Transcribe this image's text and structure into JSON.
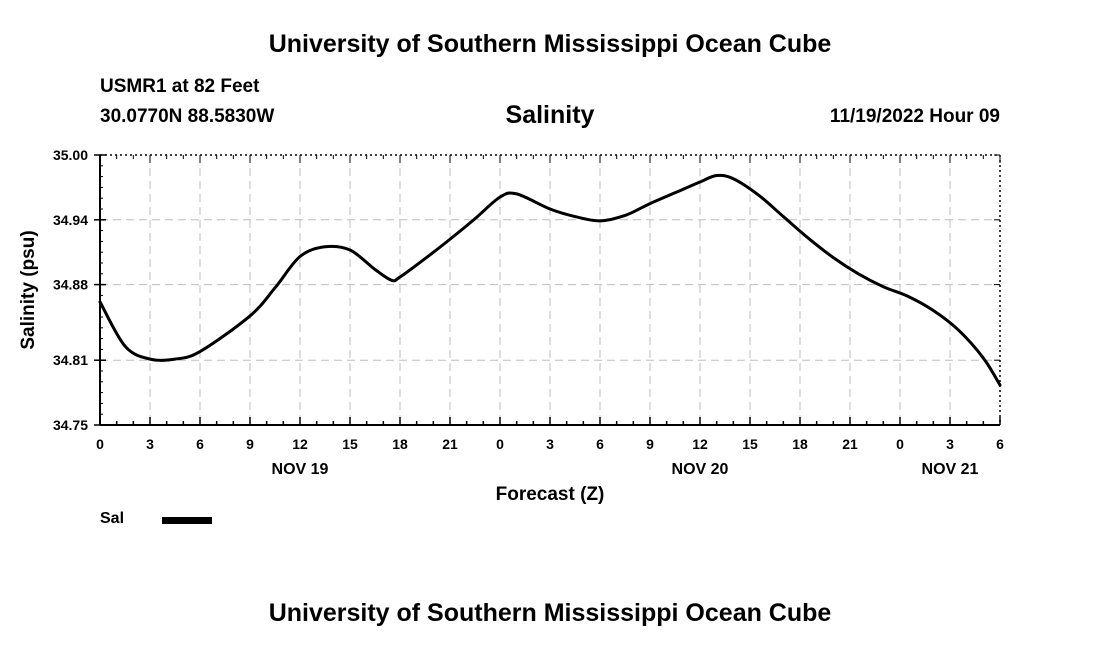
{
  "header": {
    "title": "University of Southern Mississippi Ocean Cube",
    "station": "USMR1 at 82 Feet",
    "coords": "30.0770N  88.5830W",
    "datetime": "11/19/2022 Hour 09"
  },
  "footer": {
    "title": "University of Southern Mississippi Ocean Cube"
  },
  "legend": {
    "label": "Sal",
    "color": "#000000"
  },
  "chart_data": {
    "type": "line",
    "title": "Salinity",
    "xlabel": "Forecast (Z)",
    "ylabel": "Salinity (psu)",
    "xlim": [
      0,
      54
    ],
    "ylim": [
      34.75,
      35.0
    ],
    "grid": true,
    "y_ticks": [
      34.75,
      34.81,
      34.88,
      34.94,
      35.0
    ],
    "y_tick_labels": [
      "34.75",
      "34.81",
      "34.88",
      "34.94",
      "35.00"
    ],
    "x_ticks": [
      0,
      3,
      6,
      9,
      12,
      15,
      18,
      21,
      24,
      27,
      30,
      33,
      36,
      39,
      42,
      45,
      48,
      51,
      54
    ],
    "x_tick_labels": [
      "0",
      "3",
      "6",
      "9",
      "12",
      "15",
      "18",
      "21",
      "0",
      "3",
      "6",
      "9",
      "12",
      "15",
      "18",
      "21",
      "0",
      "3",
      "6"
    ],
    "date_labels": [
      {
        "x": 12,
        "label": "NOV 19"
      },
      {
        "x": 36,
        "label": "NOV 20"
      },
      {
        "x": 51,
        "label": "NOV 21"
      }
    ],
    "series": [
      {
        "name": "Sal",
        "color": "#000000",
        "x": [
          0,
          1.5,
          3,
          4.5,
          6,
          9,
          10.5,
          12,
          13.5,
          15,
          16.5,
          17.5,
          18,
          19.5,
          21,
          22.5,
          24,
          25,
          27,
          28.5,
          30,
          31.5,
          33,
          34.5,
          36,
          37,
          38,
          39.5,
          41,
          42.5,
          44,
          45.5,
          47,
          48.5,
          50,
          51.5,
          53,
          54
        ],
        "values": [
          34.864,
          34.823,
          34.811,
          34.811,
          34.818,
          34.851,
          34.877,
          34.906,
          34.915,
          34.912,
          34.894,
          34.884,
          34.887,
          34.904,
          34.922,
          34.941,
          34.961,
          34.964,
          34.95,
          34.943,
          34.939,
          34.944,
          34.955,
          34.965,
          34.975,
          34.981,
          34.978,
          34.963,
          34.943,
          34.923,
          34.905,
          34.89,
          34.878,
          34.869,
          34.856,
          34.838,
          34.812,
          34.787
        ]
      }
    ]
  }
}
